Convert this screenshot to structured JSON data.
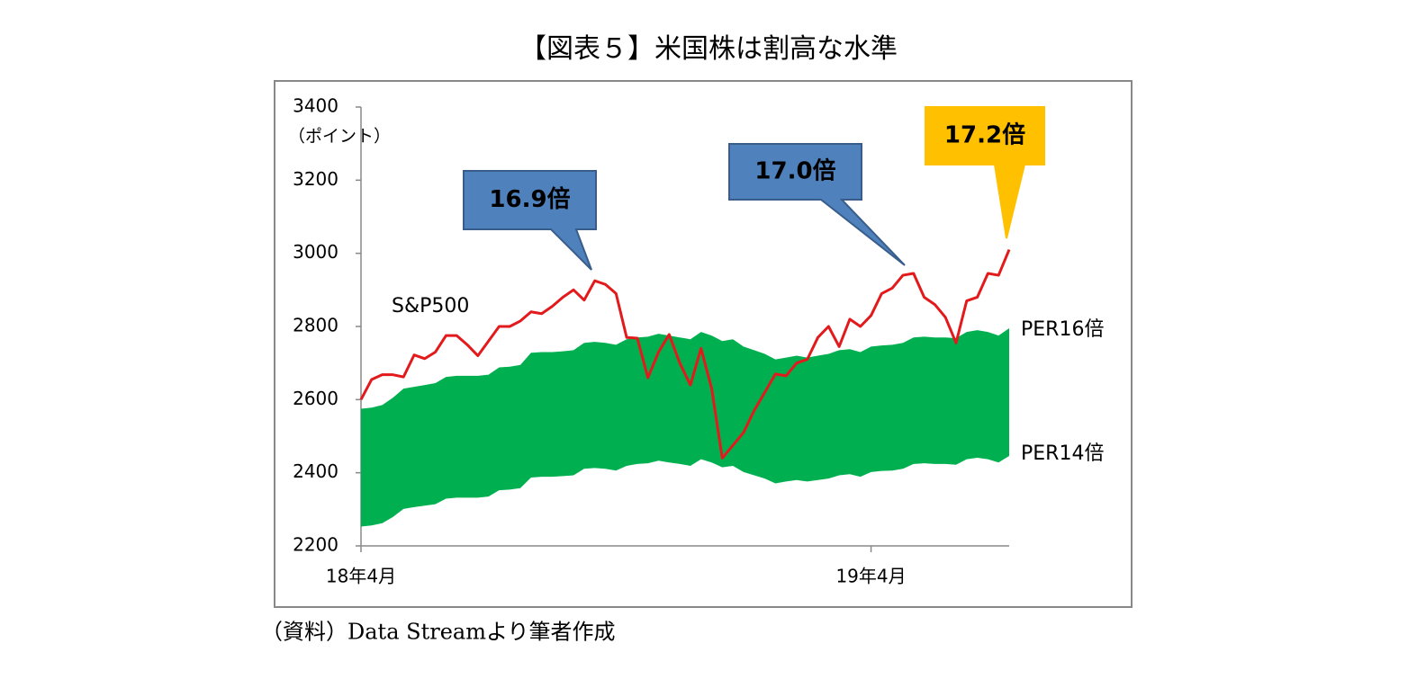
{
  "chart_data": {
    "type": "line",
    "title": "【図表５】米国株は割高な水準",
    "y_label": "（ポイント）",
    "source": "（資料）Data Streamより筆者作成",
    "categories": [
      "18年4月",
      null,
      null,
      null,
      null,
      null,
      null,
      null,
      null,
      null,
      null,
      null,
      null,
      null,
      null,
      null,
      null,
      null,
      null,
      null,
      null,
      null,
      null,
      null,
      null,
      null,
      null,
      null,
      null,
      null,
      null,
      null,
      null,
      null,
      null,
      null,
      null,
      null,
      null,
      null,
      null,
      null,
      null,
      null,
      null,
      null,
      null,
      null,
      "19年4月",
      null,
      null,
      null,
      null,
      null,
      null,
      null,
      null,
      null,
      null,
      null,
      null,
      null
    ],
    "ylim": [
      2200,
      3400
    ],
    "yticks": [
      2200,
      2400,
      2600,
      2800,
      3000,
      3200,
      3400
    ],
    "series": [
      {
        "name": "S&P500",
        "color": "#e31a1c",
        "values": [
          2600,
          2655,
          2668,
          2668,
          2662,
          2722,
          2712,
          2730,
          2775,
          2775,
          2750,
          2720,
          2760,
          2800,
          2800,
          2815,
          2840,
          2835,
          2855,
          2880,
          2900,
          2872,
          2925,
          2915,
          2890,
          2770,
          2768,
          2660,
          2730,
          2778,
          2700,
          2640,
          2740,
          2630,
          2440,
          2475,
          2510,
          2570,
          2620,
          2670,
          2665,
          2700,
          2710,
          2770,
          2800,
          2745,
          2820,
          2800,
          2830,
          2890,
          2905,
          2940,
          2945,
          2880,
          2860,
          2825,
          2755,
          2870,
          2880,
          2945,
          2940,
          3010
        ]
      },
      {
        "name": "PER16倍",
        "color": "#00b050",
        "values": [
          2575,
          2578,
          2585,
          2605,
          2630,
          2635,
          2640,
          2645,
          2662,
          2665,
          2665,
          2665,
          2668,
          2688,
          2690,
          2695,
          2728,
          2730,
          2730,
          2732,
          2735,
          2755,
          2758,
          2755,
          2750,
          2765,
          2770,
          2772,
          2780,
          2775,
          2770,
          2765,
          2785,
          2775,
          2760,
          2765,
          2745,
          2735,
          2725,
          2710,
          2715,
          2720,
          2715,
          2720,
          2725,
          2735,
          2738,
          2730,
          2745,
          2748,
          2750,
          2755,
          2770,
          2772,
          2770,
          2770,
          2768,
          2785,
          2790,
          2785,
          2775,
          2795
        ]
      },
      {
        "name": "PER14倍",
        "color": "#00b050",
        "values": [
          2253,
          2256,
          2262,
          2279,
          2301,
          2306,
          2310,
          2314,
          2329,
          2332,
          2332,
          2332,
          2335,
          2352,
          2354,
          2358,
          2387,
          2389,
          2389,
          2391,
          2393,
          2411,
          2413,
          2411,
          2406,
          2419,
          2424,
          2426,
          2433,
          2428,
          2424,
          2419,
          2437,
          2428,
          2415,
          2419,
          2402,
          2393,
          2384,
          2371,
          2376,
          2380,
          2376,
          2380,
          2384,
          2393,
          2396,
          2389,
          2402,
          2405,
          2406,
          2411,
          2424,
          2426,
          2424,
          2424,
          2422,
          2437,
          2441,
          2437,
          2428,
          2446
        ]
      }
    ],
    "annotations": [
      {
        "text": "16.9倍",
        "color": "#4f81bd"
      },
      {
        "text": "17.0倍",
        "color": "#4f81bd"
      },
      {
        "text": "17.2倍",
        "color": "#ffc000"
      }
    ]
  }
}
